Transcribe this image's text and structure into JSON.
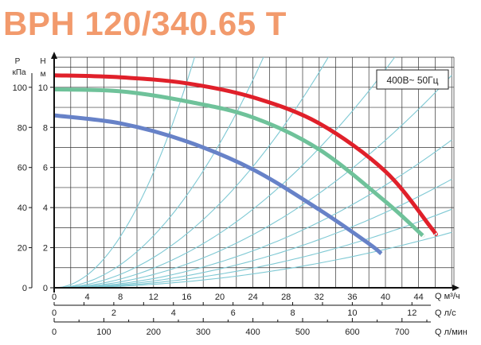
{
  "title": "BPH 120/340.65 T",
  "chart_data": {
    "type": "line",
    "title": "BPH 120/340.65 T",
    "power_label": "400В~ 50Гц",
    "y_left_outer": {
      "unit_top": "P",
      "unit_bottom": "кПа",
      "range": [
        0,
        115
      ],
      "ticks": [
        0,
        20,
        40,
        60,
        80,
        100
      ]
    },
    "y_left_inner": {
      "unit_top": "H",
      "unit_bottom": "м",
      "range": [
        0,
        11.5
      ],
      "ticks": [
        0,
        2,
        4,
        6,
        8,
        10
      ]
    },
    "x_m3h": {
      "label": "Q м³/ч",
      "range": [
        0,
        48
      ],
      "ticks": [
        0,
        4,
        8,
        12,
        16,
        20,
        24,
        28,
        32,
        36,
        40,
        44
      ]
    },
    "x_ls": {
      "label": "Q л/с",
      "ticks": [
        0,
        2,
        4,
        6,
        8,
        10,
        12
      ]
    },
    "x_lmin": {
      "label": "Q л/мин",
      "ticks": [
        0,
        100,
        200,
        300,
        400,
        500,
        600,
        700
      ]
    },
    "grid": true,
    "series": [
      {
        "color": "#E0202A",
        "points": [
          [
            0,
            10.6
          ],
          [
            8,
            10.5
          ],
          [
            16,
            10.2
          ],
          [
            24,
            9.5
          ],
          [
            32,
            8.2
          ],
          [
            40,
            5.8
          ],
          [
            45.5,
            3.0
          ],
          [
            46,
            2.7
          ]
        ]
      },
      {
        "color": "#6FC29A",
        "points": [
          [
            0,
            9.9
          ],
          [
            8,
            9.8
          ],
          [
            16,
            9.3
          ],
          [
            24,
            8.5
          ],
          [
            32,
            6.9
          ],
          [
            40,
            4.3
          ],
          [
            44,
            2.8
          ],
          [
            44.5,
            2.6
          ]
        ]
      },
      {
        "color": "#6782C8",
        "points": [
          [
            0,
            8.6
          ],
          [
            8,
            8.2
          ],
          [
            16,
            7.3
          ],
          [
            24,
            5.9
          ],
          [
            32,
            3.9
          ],
          [
            38,
            2.2
          ],
          [
            39.5,
            1.7
          ]
        ]
      }
    ],
    "system_curves_k": [
      0.04,
      0.018,
      0.0105,
      0.0068,
      0.0046,
      0.0032,
      0.00235,
      0.0017,
      0.0012
    ]
  }
}
